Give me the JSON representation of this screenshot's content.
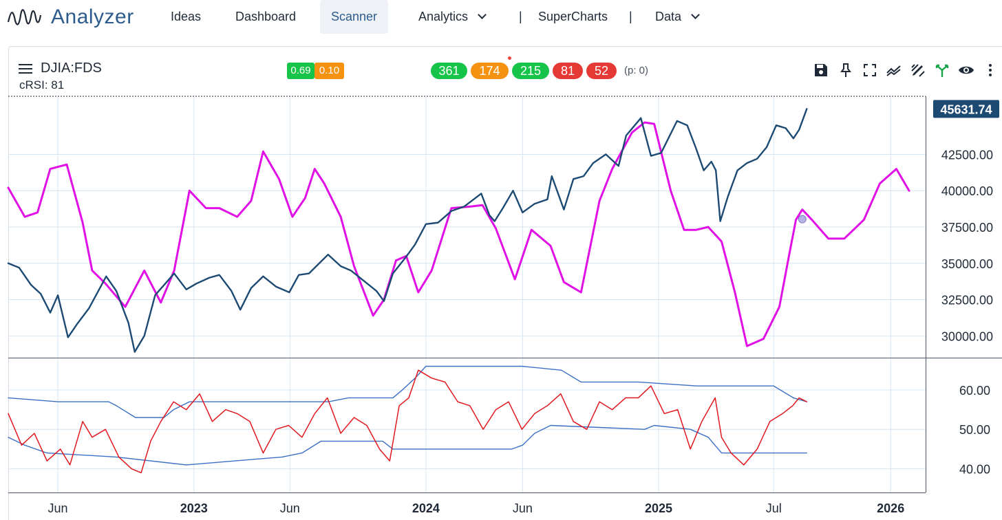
{
  "nav": {
    "logo_text": "Analyzer",
    "items": [
      {
        "label": "Ideas"
      },
      {
        "label": "Dashboard"
      },
      {
        "label": "Scanner"
      },
      {
        "label": "Analytics"
      },
      {
        "label": "SuperCharts"
      },
      {
        "label": "Data"
      }
    ],
    "separator": "|"
  },
  "chart_header": {
    "symbol": "DJIA:FDS",
    "indicator_label": "cRSI: 81",
    "small_badges": [
      {
        "text": "0.69",
        "color": "#16c44a"
      },
      {
        "text": "0.10",
        "color": "#f59311"
      }
    ],
    "count_badges": [
      {
        "text": "361",
        "color": "#16c44a"
      },
      {
        "text": "174",
        "color": "#f59311"
      },
      {
        "text": "215",
        "color": "#16c44a"
      },
      {
        "text": "81",
        "color": "#e53935"
      },
      {
        "text": "52",
        "color": "#e53935"
      }
    ],
    "p_note": "(p: 0)",
    "tools": [
      "save-icon",
      "pin-icon",
      "fullscreen-icon",
      "trend-icon",
      "draw-icon",
      "branch-icon",
      "eye-icon",
      "more-vertical-icon"
    ]
  },
  "chart_data": [
    {
      "type": "line",
      "panel": "price",
      "last_value_label": "45631.74",
      "ylim": [
        28500,
        46500
      ],
      "y_ticks": [
        "42500.00",
        "40000.00",
        "37500.00",
        "35000.00",
        "32500.00",
        "30000.00"
      ],
      "y_tick_values": [
        42500,
        40000,
        37500,
        35000,
        32500,
        30000
      ],
      "series": [
        {
          "color": "#1d4a73",
          "x": [
            "2022-03-15",
            "2022-04-01",
            "2022-04-20",
            "2022-05-05",
            "2022-05-20",
            "2022-06-01",
            "2022-06-17",
            "2022-07-01",
            "2022-07-20",
            "2022-08-16",
            "2022-09-01",
            "2022-09-20",
            "2022-09-30",
            "2022-10-15",
            "2022-11-01",
            "2022-11-15",
            "2022-12-01",
            "2022-12-20",
            "2023-01-05",
            "2023-01-25",
            "2023-02-10",
            "2023-03-01",
            "2023-03-15",
            "2023-04-01",
            "2023-04-20",
            "2023-05-10",
            "2023-05-31",
            "2023-06-15",
            "2023-07-01",
            "2023-07-31",
            "2023-08-20",
            "2023-09-05",
            "2023-09-25",
            "2023-10-15",
            "2023-10-27",
            "2023-11-10",
            "2023-11-30",
            "2023-12-15",
            "2024-01-01",
            "2024-01-20",
            "2024-02-10",
            "2024-03-01",
            "2024-03-28",
            "2024-04-10",
            "2024-04-18",
            "2024-05-01",
            "2024-05-17",
            "2024-06-01",
            "2024-06-20",
            "2024-07-10",
            "2024-07-17",
            "2024-08-05",
            "2024-08-20",
            "2024-09-05",
            "2024-09-20",
            "2024-10-10",
            "2024-10-30",
            "2024-11-11",
            "2024-12-04",
            "2024-12-20",
            "2025-01-05",
            "2025-01-30",
            "2025-02-15",
            "2025-03-01",
            "2025-03-13",
            "2025-03-25",
            "2025-04-01",
            "2025-04-08",
            "2025-04-20",
            "2025-05-05",
            "2025-05-20",
            "2025-06-05",
            "2025-06-20",
            "2025-07-05",
            "2025-07-20",
            "2025-08-01",
            "2025-08-10",
            "2025-08-22"
          ],
          "values": [
            35000,
            34700,
            33500,
            32900,
            31600,
            32800,
            29900,
            30800,
            31900,
            34100,
            33100,
            30900,
            28900,
            30000,
            32800,
            33500,
            34300,
            33200,
            33600,
            34000,
            34200,
            33100,
            31800,
            33300,
            34100,
            33400,
            33000,
            34200,
            34300,
            35600,
            34800,
            34500,
            33800,
            33100,
            32400,
            34300,
            35400,
            36300,
            37700,
            37800,
            38600,
            38900,
            39800,
            38300,
            37900,
            38800,
            40000,
            38500,
            39100,
            39400,
            41000,
            38700,
            40800,
            41000,
            41900,
            42500,
            41700,
            43800,
            45000,
            42400,
            42600,
            44800,
            44500,
            42900,
            41400,
            42000,
            41400,
            37900,
            39600,
            41400,
            41900,
            42200,
            43000,
            44500,
            44300,
            43600,
            44200,
            45631.74
          ]
        },
        {
          "color": "#e010e6",
          "x": [
            "2022-03-15",
            "2022-04-10",
            "2022-04-30",
            "2022-05-20",
            "2022-06-15",
            "2022-07-10",
            "2022-07-25",
            "2022-08-15",
            "2022-09-15",
            "2022-10-15",
            "2022-11-10",
            "2022-12-01",
            "2022-12-25",
            "2023-01-20",
            "2023-02-10",
            "2023-03-10",
            "2023-04-01",
            "2023-04-20",
            "2023-05-15",
            "2023-06-05",
            "2023-06-25",
            "2023-07-10",
            "2023-07-25",
            "2023-08-20",
            "2023-09-10",
            "2023-10-10",
            "2023-10-27",
            "2023-11-15",
            "2023-12-01",
            "2023-12-20",
            "2024-01-10",
            "2024-02-10",
            "2024-03-10",
            "2024-03-30",
            "2024-04-20",
            "2024-05-20",
            "2024-06-15",
            "2024-07-15",
            "2024-08-05",
            "2024-09-01",
            "2024-09-30",
            "2024-10-20",
            "2024-11-20",
            "2024-12-10",
            "2024-12-25",
            "2025-01-20",
            "2025-02-10",
            "2025-03-01",
            "2025-03-20",
            "2025-04-10",
            "2025-05-01",
            "2025-05-20",
            "2025-06-15",
            "2025-07-10",
            "2025-07-25",
            "2025-08-05",
            "2025-08-15",
            "2025-08-30",
            "2025-09-25",
            "2025-10-20",
            "2025-11-20",
            "2025-12-15",
            "2026-01-10",
            "2026-01-30"
          ],
          "values": [
            40200,
            38200,
            38500,
            41500,
            41800,
            37800,
            34500,
            33600,
            32000,
            34500,
            32300,
            34500,
            40000,
            38800,
            38800,
            38200,
            39300,
            42700,
            40800,
            38200,
            39500,
            41500,
            40500,
            38200,
            34800,
            31400,
            32500,
            35200,
            35500,
            33000,
            34500,
            38800,
            38900,
            39000,
            37400,
            33900,
            37300,
            36200,
            33700,
            33000,
            39300,
            41500,
            44000,
            44700,
            44600,
            40000,
            37300,
            37300,
            37500,
            36500,
            33000,
            29300,
            29800,
            32000,
            35500,
            38000,
            38700,
            38000,
            36700,
            36700,
            38000,
            40500,
            41500,
            40000
          ]
        }
      ]
    },
    {
      "type": "line",
      "panel": "crsi",
      "ylim": [
        34,
        68
      ],
      "y_ticks": [
        "60.00",
        "50.00",
        "40.00"
      ],
      "y_tick_values": [
        60,
        50,
        40
      ],
      "series": [
        {
          "color": "#e0181e",
          "x": [
            "2022-03-15",
            "2022-04-05",
            "2022-04-25",
            "2022-05-15",
            "2022-06-05",
            "2022-06-20",
            "2022-07-10",
            "2022-07-25",
            "2022-08-15",
            "2022-09-05",
            "2022-09-25",
            "2022-10-10",
            "2022-10-25",
            "2022-11-10",
            "2022-11-30",
            "2022-12-20",
            "2023-01-10",
            "2023-01-30",
            "2023-02-20",
            "2023-03-10",
            "2023-03-30",
            "2023-04-20",
            "2023-05-10",
            "2023-05-30",
            "2023-06-20",
            "2023-07-10",
            "2023-07-30",
            "2023-08-20",
            "2023-09-10",
            "2023-09-30",
            "2023-10-20",
            "2023-11-05",
            "2023-11-20",
            "2023-12-05",
            "2023-12-20",
            "2024-01-10",
            "2024-01-31",
            "2024-02-20",
            "2024-03-10",
            "2024-03-31",
            "2024-04-20",
            "2024-05-10",
            "2024-05-31",
            "2024-06-20",
            "2024-07-10",
            "2024-07-31",
            "2024-08-20",
            "2024-09-10",
            "2024-09-30",
            "2024-10-20",
            "2024-11-10",
            "2024-11-30",
            "2024-12-20",
            "2025-01-10",
            "2025-01-31",
            "2025-02-20",
            "2025-03-10",
            "2025-03-31",
            "2025-04-10",
            "2025-04-25",
            "2025-05-15",
            "2025-06-05",
            "2025-06-25",
            "2025-07-15",
            "2025-07-31",
            "2025-08-10",
            "2025-08-22"
          ],
          "values": [
            54,
            46,
            49,
            42,
            45,
            41,
            52,
            48,
            50,
            43,
            40,
            39,
            47,
            52,
            57,
            55,
            59,
            52,
            55,
            54,
            52,
            44,
            50,
            51,
            48,
            54,
            58,
            49,
            53,
            51,
            45,
            42,
            56,
            58,
            65,
            63,
            62,
            57,
            56,
            50,
            55,
            57,
            50,
            54,
            56,
            59,
            52,
            50,
            57,
            55,
            58,
            58,
            61,
            54,
            55,
            45,
            52,
            58,
            48,
            44,
            41,
            45,
            52,
            54,
            56,
            58,
            57
          ]
        },
        {
          "color": "#3a6fc4",
          "x": [
            "2022-03-15",
            "2022-06-01",
            "2022-08-20",
            "2022-09-01",
            "2022-10-01",
            "2022-11-15",
            "2022-11-30",
            "2022-12-25",
            "2023-06-01",
            "2023-08-01",
            "2023-09-01",
            "2023-10-01",
            "2023-11-10",
            "2023-11-25",
            "2023-12-15",
            "2024-01-01",
            "2024-06-01",
            "2024-08-01",
            "2024-09-01",
            "2024-12-01",
            "2025-03-01",
            "2025-07-01",
            "2025-08-01",
            "2025-08-22"
          ],
          "values": [
            58,
            57,
            57,
            56,
            53,
            53,
            55,
            57,
            57,
            57,
            58,
            58,
            58,
            60,
            63,
            66,
            66,
            65,
            62,
            62,
            61,
            61,
            58,
            57
          ]
        },
        {
          "color": "#3a6fc4",
          "x": [
            "2022-03-15",
            "2022-04-10",
            "2022-05-15",
            "2022-09-01",
            "2022-12-20",
            "2023-05-20",
            "2023-06-20",
            "2023-07-20",
            "2023-07-31",
            "2023-10-25",
            "2023-11-10",
            "2024-01-01",
            "2024-05-15",
            "2024-06-01",
            "2024-06-20",
            "2024-07-15",
            "2024-12-10",
            "2024-12-25",
            "2025-02-20",
            "2025-03-20",
            "2025-04-10",
            "2025-05-01",
            "2025-05-20",
            "2025-08-22"
          ],
          "values": [
            48,
            46,
            44,
            43,
            41,
            43,
            44,
            47,
            47,
            47,
            45,
            45,
            45,
            46,
            49,
            51,
            50,
            51,
            50,
            48,
            44,
            44,
            44,
            44
          ]
        }
      ]
    }
  ],
  "x_axis": {
    "ticks": [
      {
        "label": "Jun",
        "date": "2022-06-01",
        "bold": false
      },
      {
        "label": "2023",
        "date": "2023-01-01",
        "bold": true
      },
      {
        "label": "Jun",
        "date": "2023-06-01",
        "bold": false
      },
      {
        "label": "2024",
        "date": "2024-01-01",
        "bold": true
      },
      {
        "label": "Jun",
        "date": "2024-06-01",
        "bold": false
      },
      {
        "label": "2025",
        "date": "2025-01-01",
        "bold": true
      },
      {
        "label": "Jul",
        "date": "2025-07-01",
        "bold": false
      },
      {
        "label": "2026",
        "date": "2026-01-01",
        "bold": true
      }
    ],
    "range": [
      "2022-03-15",
      "2026-02-25"
    ],
    "grid": true
  },
  "colors": {
    "brand": "#2d5b8c",
    "grid": "#d6e4f0",
    "price_label_bg": "#1d4a73"
  }
}
